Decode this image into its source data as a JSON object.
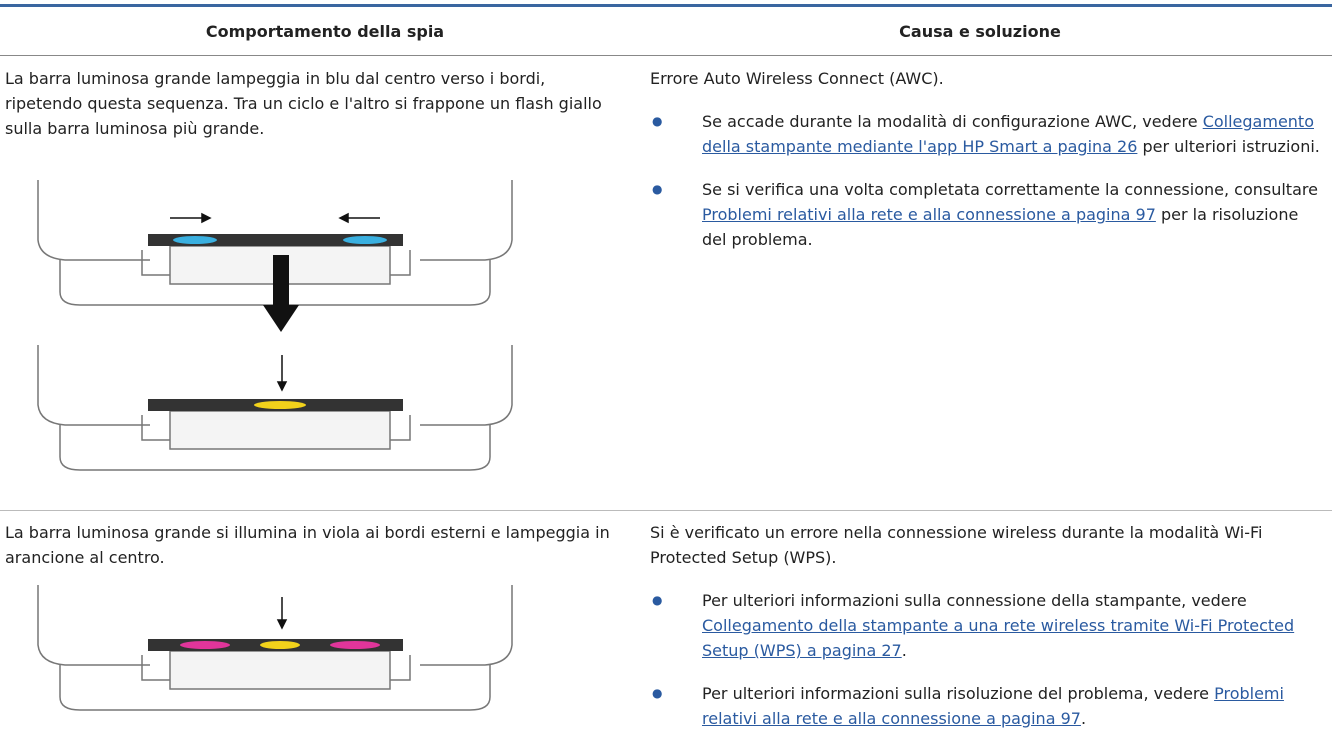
{
  "table": {
    "headers": [
      "Comportamento della spia",
      "Causa e soluzione"
    ],
    "rows": [
      {
        "behavior": "La barra luminosa grande lampeggia in blu dal centro verso i bordi, ripetendo questa sequenza. Tra un ciclo e l'altro si frappone un flash giallo sulla barra luminosa più grande.",
        "cause": "Errore Auto Wireless Connect (AWC).",
        "bullets": [
          {
            "before": "Se accade durante la modalità di configurazione AWC, vedere ",
            "link": "Collegamento della stampante mediante l'app HP Smart a pagina 26",
            "after": " per ulteriori istruzioni."
          },
          {
            "before": "Se si verifica una volta completata correttamente la connessione, consultare ",
            "link": "Problemi relativi alla rete e alla connessione a pagina 97",
            "after": " per la risoluzione del problema."
          }
        ]
      },
      {
        "behavior": "La barra luminosa grande si illumina in viola ai bordi esterni e lampeggia in arancione al centro.",
        "cause": "Si è verificato un errore nella connessione wireless durante la modalità Wi-Fi Protected Setup (WPS).",
        "bullets": [
          {
            "before": "Per ulteriori informazioni sulla connessione della stampante, vedere ",
            "link": "Collegamento della stampante a una rete wireless tramite Wi-Fi Protected Setup (WPS) a pagina 27",
            "after": "."
          },
          {
            "before": "Per ulteriori informazioni sulla risoluzione del problema, vedere ",
            "link": "Problemi relativi alla rete e alla connessione a pagina 97",
            "after": "."
          }
        ]
      }
    ]
  }
}
